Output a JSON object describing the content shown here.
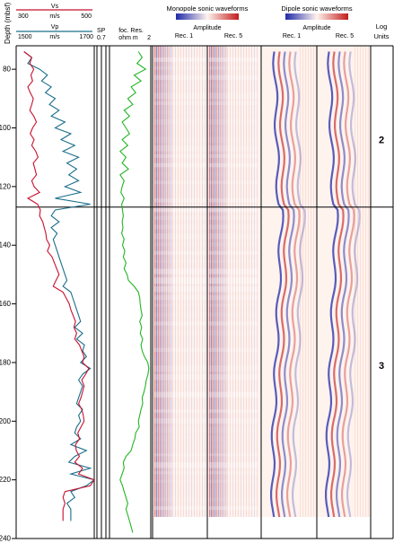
{
  "chart_data": {
    "type": "line",
    "depth_axis": {
      "label": "Depth (mbsf)",
      "range": [
        72,
        240
      ],
      "ticks": [
        80,
        100,
        120,
        140,
        160,
        180,
        200,
        220,
        240
      ]
    },
    "tracks": {
      "velocity": {
        "vs_label": "Vs",
        "vs_unit": "m/s",
        "vs_range": [
          300,
          500
        ],
        "vs_color": "#c8102e",
        "vp_label": "Vp",
        "vp_unit": "m/s",
        "vp_range": [
          1500,
          1700
        ],
        "vp_color": "#1a6f8a"
      },
      "sp": {
        "label": "SP"
      },
      "resistivity": {
        "label": "foc. Res.",
        "unit": "ohm m",
        "range_min": "0.7",
        "range_max": "2",
        "color": "#22b522"
      }
    },
    "waveforms": {
      "monopole_title": "Monopole sonic waveforms",
      "dipole_title": "Dipole sonic waveforms",
      "amplitude_label": "Amplitude",
      "rec1_label": "Rec. 1",
      "rec5_label": "Rec. 5",
      "colors": {
        "negative": "#1f2aa8",
        "neutral": "#fff3ee",
        "positive": "#c21d1d"
      }
    },
    "log_units": {
      "header": "Log Units",
      "boundary_depth": 127,
      "units": [
        {
          "label": "2",
          "depth": 104
        },
        {
          "label": "3",
          "depth": 181
        }
      ]
    },
    "series": [
      {
        "name": "Vs",
        "color": "#c8102e",
        "depth": [
          74,
          76,
          78,
          80,
          82,
          84,
          86,
          88,
          90,
          92,
          94,
          96,
          98,
          100,
          102,
          104,
          106,
          108,
          110,
          112,
          114,
          116,
          118,
          120,
          122,
          124,
          126,
          128,
          130,
          132,
          134,
          136,
          138,
          140,
          142,
          144,
          146,
          148,
          150,
          152,
          154,
          156,
          158,
          160,
          162,
          164,
          166,
          168,
          170,
          172,
          174,
          176,
          178,
          180,
          182,
          184,
          186,
          188,
          190,
          192,
          194,
          196,
          198,
          200,
          202,
          204,
          206,
          208,
          210,
          212,
          214,
          216,
          218,
          220,
          222,
          224,
          226,
          228,
          230,
          232,
          234
        ],
        "values": [
          320,
          340,
          335,
          345,
          338,
          342,
          330,
          336,
          344,
          340,
          335,
          345,
          352,
          342,
          336,
          346,
          340,
          350,
          356,
          344,
          348,
          352,
          340,
          346,
          360,
          330,
          355,
          362,
          360,
          368,
          372,
          376,
          378,
          386,
          380,
          392,
          398,
          404,
          410,
          402,
          395,
          420,
          428,
          436,
          440,
          446,
          452,
          448,
          455,
          450,
          462,
          468,
          474,
          470,
          486,
          478,
          468,
          474,
          470,
          466,
          460,
          468,
          472,
          474,
          466,
          458,
          462,
          452,
          454,
          462,
          450,
          470,
          460,
          500,
          490,
          425,
          420,
          425,
          420,
          420,
          420
        ]
      },
      {
        "name": "Vp",
        "color": "#1a6f8a",
        "depth": [
          74,
          76,
          78,
          80,
          82,
          84,
          86,
          88,
          90,
          92,
          94,
          96,
          98,
          100,
          102,
          104,
          106,
          108,
          110,
          112,
          114,
          116,
          118,
          120,
          122,
          124,
          126,
          128,
          130,
          132,
          134,
          136,
          138,
          140,
          142,
          144,
          146,
          148,
          150,
          152,
          154,
          156,
          158,
          160,
          162,
          164,
          166,
          168,
          170,
          172,
          174,
          176,
          178,
          180,
          182,
          184,
          186,
          188,
          190,
          192,
          194,
          196,
          198,
          200,
          202,
          204,
          206,
          208,
          210,
          212,
          214,
          216,
          218,
          220,
          222,
          224,
          226,
          228,
          230,
          232,
          234
        ],
        "values": [
          1520,
          1540,
          1530,
          1560,
          1580,
          1565,
          1590,
          1575,
          1600,
          1585,
          1610,
          1590,
          1625,
          1600,
          1640,
          1615,
          1650,
          1620,
          1660,
          1630,
          1655,
          1635,
          1660,
          1625,
          1665,
          1600,
          1690,
          1600,
          1590,
          1610,
          1590,
          1605,
          1595,
          1600,
          1605,
          1610,
          1615,
          1620,
          1625,
          1630,
          1620,
          1640,
          1645,
          1650,
          1655,
          1660,
          1665,
          1650,
          1670,
          1655,
          1675,
          1670,
          1680,
          1665,
          1690,
          1670,
          1660,
          1670,
          1665,
          1660,
          1655,
          1670,
          1660,
          1665,
          1655,
          1650,
          1665,
          1640,
          1680,
          1650,
          1635,
          1690,
          1640,
          1700,
          1680,
          1640,
          1650,
          1630,
          1640,
          1640,
          1640
        ]
      },
      {
        "name": "foc. Res.",
        "color": "#22b522",
        "depth": [
          74,
          76,
          78,
          80,
          82,
          84,
          86,
          88,
          90,
          92,
          94,
          96,
          98,
          100,
          102,
          104,
          106,
          108,
          110,
          112,
          114,
          116,
          118,
          120,
          122,
          124,
          126,
          128,
          130,
          132,
          134,
          136,
          138,
          140,
          142,
          144,
          146,
          148,
          150,
          152,
          154,
          156,
          158,
          160,
          162,
          164,
          166,
          168,
          170,
          172,
          174,
          176,
          178,
          180,
          182,
          184,
          186,
          188,
          190,
          192,
          194,
          196,
          198,
          200,
          202,
          204,
          206,
          208,
          210,
          212,
          214,
          216,
          218,
          220,
          222,
          224,
          226,
          228,
          230,
          232,
          234,
          236,
          238
        ],
        "values": [
          1.45,
          1.6,
          1.4,
          1.75,
          1.3,
          1.55,
          1.2,
          1.35,
          1.1,
          1.25,
          1.0,
          1.15,
          0.95,
          1.05,
          1.15,
          0.95,
          1.1,
          0.9,
          1.05,
          0.95,
          1.12,
          0.9,
          1.0,
          0.95,
          0.92,
          1.0,
          0.94,
          0.96,
          0.98,
          0.95,
          0.97,
          0.94,
          1.0,
          0.96,
          1.02,
          0.98,
          1.05,
          1.0,
          1.08,
          1.12,
          1.3,
          1.45,
          1.5,
          1.52,
          1.55,
          1.6,
          1.5,
          1.58,
          1.52,
          1.62,
          1.55,
          1.6,
          1.7,
          1.85,
          1.9,
          1.86,
          1.78,
          1.74,
          1.68,
          1.6,
          1.62,
          1.55,
          1.5,
          1.45,
          1.48,
          1.35,
          1.32,
          1.25,
          1.2,
          1.05,
          0.98,
          1.0,
          0.95,
          0.9,
          0.96,
          1.0,
          1.05,
          1.1,
          1.05,
          1.1,
          1.15,
          1.2,
          1.25
        ]
      }
    ]
  }
}
